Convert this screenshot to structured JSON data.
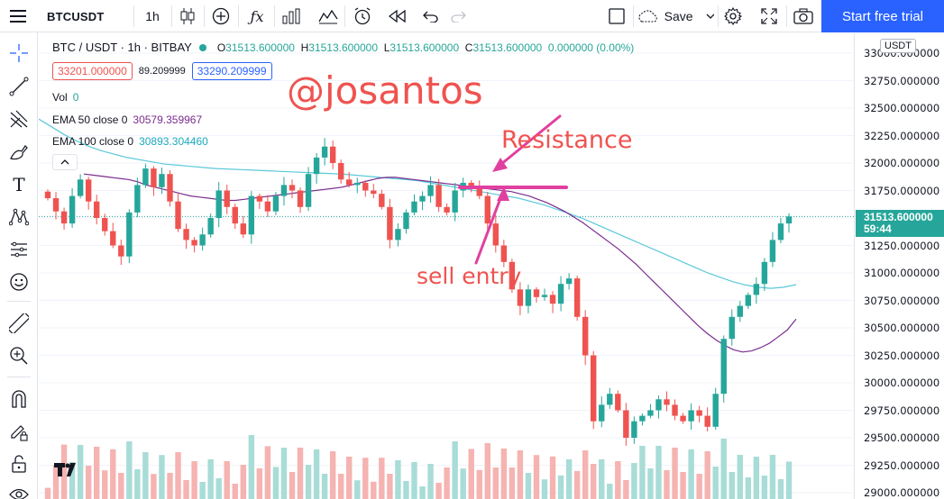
{
  "toolbar": {
    "symbol": "BTCUSDT",
    "interval": "1h",
    "save_label": "Save",
    "trial_label": "Start free trial"
  },
  "legend": {
    "title": "BTC / USDT · 1h · BITBAY",
    "open_label": "O",
    "open": "31513.600000",
    "high_label": "H",
    "high": "31513.600000",
    "low_label": "L",
    "low": "31513.600000",
    "close_label": "C",
    "close": "31513.600000",
    "change": "0.000000 (0.00%)",
    "sell_price": "33201.000000",
    "spread": "89.209999",
    "buy_price": "33290.209999",
    "vol_label": "Vol",
    "vol_value": "0",
    "ema50_label": "EMA 50 close 0",
    "ema50_value": "30579.359967",
    "ema100_label": "EMA 100 close 0",
    "ema100_value": "30893.304460"
  },
  "price_axis": {
    "currency": "USDT",
    "ticks": [
      "33000.000000",
      "32750.000000",
      "32500.000000",
      "32250.000000",
      "32000.000000",
      "31750.000000",
      "31250.000000",
      "31000.000000",
      "30750.000000",
      "30500.000000",
      "30250.000000",
      "30000.000000",
      "29750.000000",
      "29500.000000",
      "29250.000000",
      "29000.000000"
    ],
    "last_price": "31513.600000",
    "countdown": "59:44"
  },
  "annotations": {
    "watermark": "@josantos",
    "resistance": "Resistance",
    "sell_entry": "sell entry"
  },
  "colors": {
    "up": "#26a69a",
    "down": "#ef5350",
    "ema50": "#7b2d8e",
    "ema100": "#5ac8d8",
    "annotation_pen": "#e040a0",
    "annotation_text": "#ef5350",
    "accent": "#2962ff"
  },
  "chart_data": {
    "type": "candlestick",
    "price_range": [
      29000,
      33050
    ],
    "close_series": [
      31680,
      31560,
      31450,
      31700,
      31850,
      31650,
      31500,
      31380,
      31250,
      31150,
      31550,
      31800,
      31950,
      31780,
      31900,
      31650,
      31400,
      31300,
      31250,
      31350,
      31500,
      31750,
      31600,
      31450,
      31350,
      31700,
      31650,
      31560,
      31700,
      31800,
      31750,
      31600,
      31900,
      32050,
      32150,
      32000,
      31850,
      31800,
      31820,
      31750,
      31720,
      31600,
      31300,
      31400,
      31550,
      31650,
      31700,
      31800,
      31600,
      31550,
      31750,
      31820,
      31780,
      31700,
      31450,
      31250,
      31100,
      30850,
      30700,
      30850,
      30780,
      30800,
      30720,
      30900,
      30950,
      30600,
      30250,
      29650,
      29800,
      29900,
      29750,
      29500,
      29650,
      29700,
      29750,
      29850,
      29800,
      29700,
      29650,
      29750,
      29700,
      29600,
      29900,
      30400,
      30600,
      30700,
      30800,
      30900,
      31100,
      31300,
      31450,
      31513.6
    ],
    "ema50_series": [
      31900,
      31890,
      31880,
      31870,
      31860,
      31850,
      31830,
      31800,
      31780,
      31760,
      31740,
      31720,
      31700,
      31690,
      31680,
      31670,
      31660,
      31660,
      31670,
      31680,
      31690,
      31700,
      31710,
      31720,
      31730,
      31740,
      31750,
      31760,
      31770,
      31780,
      31800,
      31820,
      31840,
      31860,
      31870,
      31870,
      31860,
      31850,
      31840,
      31830,
      31820,
      31810,
      31800,
      31790,
      31780,
      31770,
      31760,
      31750,
      31740,
      31720,
      31700,
      31670,
      31640,
      31600,
      31560,
      31510,
      31460,
      31400,
      31340,
      31280,
      31220,
      31150,
      31080,
      31000,
      30920,
      30840,
      30760,
      30680,
      30600,
      30520,
      30450,
      30390,
      30340,
      30300,
      30280,
      30290,
      30320,
      30360,
      30420,
      30480,
      30579.4
    ],
    "ema100_series": [
      32400,
      32330,
      32260,
      32200,
      32150,
      32110,
      32080,
      32050,
      32030,
      32010,
      31990,
      31980,
      31970,
      31960,
      31950,
      31945,
      31940,
      31935,
      31930,
      31925,
      31920,
      31915,
      31910,
      31905,
      31900,
      31890,
      31880,
      31870,
      31860,
      31850,
      31840,
      31820,
      31800,
      31780,
      31760,
      31740,
      31720,
      31700,
      31680,
      31650,
      31620,
      31580,
      31540,
      31500,
      31450,
      31400,
      31350,
      31300,
      31250,
      31200,
      31150,
      31100,
      31050,
      31000,
      30960,
      30920,
      30890,
      30870,
      30860,
      30870,
      30893.3
    ]
  }
}
